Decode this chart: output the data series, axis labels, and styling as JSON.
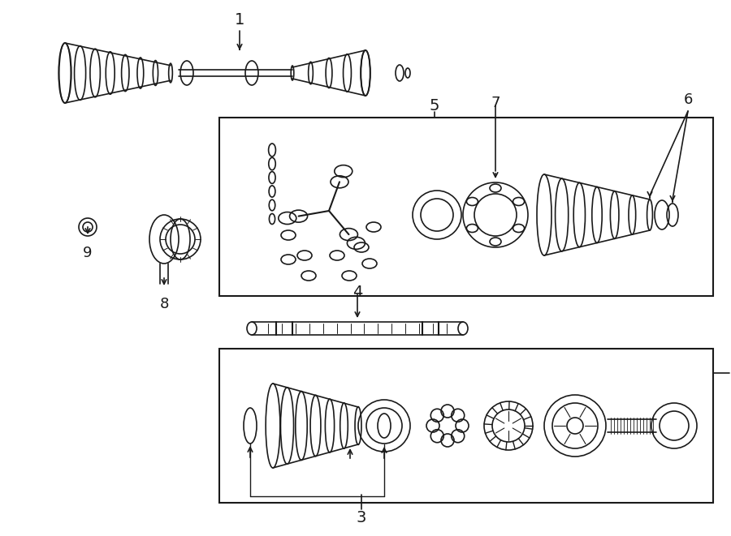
{
  "bg": "#ffffff",
  "lc": "#1a1a1a",
  "fig_w": 9.0,
  "fig_h": 6.61,
  "dpi": 100
}
